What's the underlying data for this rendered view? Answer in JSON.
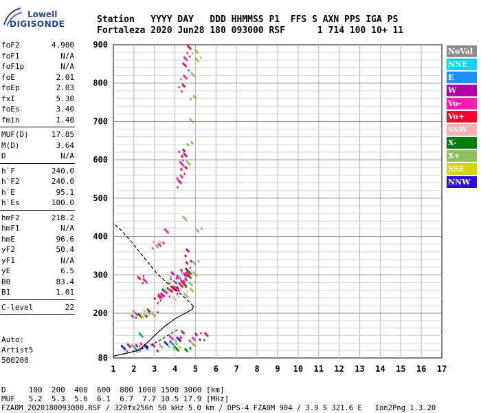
{
  "logo": {
    "line1": "Lowell",
    "line2": "DIGISONDE"
  },
  "header": {
    "line1": "Station   YYYY DAY   DDD HHMMSS P1  FFS S AXN PPS IGA PS",
    "line2": "Fortaleza 2020 Jun28 180 093000 RSF      1 714 100 10+ 11"
  },
  "params_groups": [
    [
      {
        "k": "foF2",
        "v": "4.900"
      },
      {
        "k": "foF1",
        "v": "N/A"
      },
      {
        "k": "foF1p",
        "v": "N/A"
      },
      {
        "k": "foE",
        "v": "2.01"
      },
      {
        "k": "foEp",
        "v": "2.03"
      },
      {
        "k": "fxI",
        "v": "5.30"
      },
      {
        "k": "foEs",
        "v": "3.40"
      },
      {
        "k": "fmin",
        "v": "1.40"
      }
    ],
    [
      {
        "k": "MUF(D)",
        "v": "17.85"
      },
      {
        "k": "M(D)",
        "v": "3.64"
      },
      {
        "k": "D",
        "v": "N/A"
      }
    ],
    [
      {
        "k": "h`F",
        "v": "240.0"
      },
      {
        "k": "h`F2",
        "v": "240.0"
      },
      {
        "k": "h`E",
        "v": "95.1"
      },
      {
        "k": "h`Es",
        "v": "100.0"
      }
    ],
    [
      {
        "k": "hmF2",
        "v": "218.2"
      },
      {
        "k": "hmF1",
        "v": "N/A"
      },
      {
        "k": "hmE",
        "v": "96.6"
      },
      {
        "k": "yF2",
        "v": "50.4"
      },
      {
        "k": "yF1",
        "v": "N/A"
      },
      {
        "k": "yE",
        "v": "6.5"
      },
      {
        "k": "B0",
        "v": "83.4"
      },
      {
        "k": "B1",
        "v": "1.01"
      }
    ],
    [
      {
        "k": "C-level",
        "v": "22"
      }
    ]
  ],
  "auto": {
    "line1": "Auto:",
    "line2": "Artist5",
    "line3": "500200"
  },
  "legend": [
    {
      "label": "NoVal",
      "color": "#8c8c8c"
    },
    {
      "label": "NNE",
      "color": "#00d8f0"
    },
    {
      "label": "E",
      "color": "#1f8fff"
    },
    {
      "label": "W",
      "color": "#b000a8"
    },
    {
      "label": "Vo-",
      "color": "#ff1ab0"
    },
    {
      "label": "Vo+",
      "color": "#ff0030"
    },
    {
      "label": "SSW",
      "color": "#f7b0b0"
    },
    {
      "label": "X-",
      "color": "#007c00"
    },
    {
      "label": "X+",
      "color": "#8cc060"
    },
    {
      "label": "SSE",
      "color": "#d6d600"
    },
    {
      "label": "NNW",
      "color": "#2a10e0"
    }
  ],
  "footer": {
    "d_row": "D     100  200  400  600  800 1000 1500 3000 [km]",
    "muf_row": "MUF   5.2  5.3  5.6  6.1  6.7  7.7 10.5 17.9 [MHz]",
    "file_row": "FZA0M_2020180093000.RSF / 320fx256h 50 kHz 5.0 km / DPS-4 FZA0M 904 / 3.9 S 321.6 E   Ion2Png 1.3.20"
  },
  "chart_data": {
    "type": "scatter",
    "xlim": [
      1,
      17
    ],
    "ylim": [
      80,
      900
    ],
    "x_ticks": [
      1,
      2,
      3,
      4,
      5,
      6,
      7,
      8,
      9,
      10,
      11,
      12,
      13,
      14,
      15,
      16,
      17
    ],
    "y_ticks": [
      80,
      200,
      300,
      400,
      500,
      600,
      700,
      800,
      900
    ],
    "grid": true,
    "legend_position": "right",
    "series": [
      {
        "name": "X+",
        "color": "#8cc060",
        "points": [
          [
            4.55,
            245
          ],
          [
            4.7,
            258
          ],
          [
            4.8,
            275
          ],
          [
            4.9,
            300
          ],
          [
            5.0,
            330
          ],
          [
            4.6,
            590
          ],
          [
            4.7,
            640
          ],
          [
            4.8,
            700
          ],
          [
            4.85,
            760
          ],
          [
            4.9,
            820
          ],
          [
            4.95,
            880
          ],
          [
            5.1,
            860
          ],
          [
            4.4,
            445
          ],
          [
            5.15,
            415
          ],
          [
            2.0,
            200
          ],
          [
            2.6,
            195
          ],
          [
            3.3,
            110
          ],
          [
            3.8,
            112
          ],
          [
            4.9,
            115
          ]
        ]
      },
      {
        "name": "X-",
        "color": "#007c00",
        "points": [
          [
            3.5,
            268
          ],
          [
            3.9,
            272
          ],
          [
            4.2,
            276
          ],
          [
            4.45,
            282
          ],
          [
            4.6,
            300
          ],
          [
            4.7,
            315
          ],
          [
            2.2,
            200
          ],
          [
            3.0,
            205
          ],
          [
            4.0,
            112
          ],
          [
            4.6,
            110
          ]
        ]
      },
      {
        "name": "Vo+",
        "color": "#ff0030",
        "points": [
          [
            3.1,
            238
          ],
          [
            3.4,
            245
          ],
          [
            3.7,
            255
          ],
          [
            3.95,
            262
          ],
          [
            4.2,
            270
          ],
          [
            4.4,
            280
          ],
          [
            4.55,
            300
          ],
          [
            4.65,
            330
          ],
          [
            4.2,
            540
          ],
          [
            4.4,
            575
          ],
          [
            4.5,
            610
          ],
          [
            4.3,
            790
          ],
          [
            4.5,
            845
          ],
          [
            4.6,
            890
          ],
          [
            2.3,
            290
          ],
          [
            1.7,
            110
          ],
          [
            2.2,
            112
          ],
          [
            5.5,
            140
          ]
        ]
      },
      {
        "name": "Vo-",
        "color": "#ff1ab0",
        "points": [
          [
            3.2,
            250
          ],
          [
            3.6,
            262
          ],
          [
            4.0,
            270
          ],
          [
            4.3,
            285
          ],
          [
            4.5,
            305
          ],
          [
            4.2,
            560
          ],
          [
            4.35,
            595
          ],
          [
            4.4,
            820
          ],
          [
            4.55,
            870
          ],
          [
            3.5,
            420
          ],
          [
            3.3,
            385
          ],
          [
            2.5,
            290
          ],
          [
            2.0,
            200
          ],
          [
            3.8,
            140
          ],
          [
            4.8,
            135
          ]
        ]
      },
      {
        "name": "W",
        "color": "#b000a8",
        "points": [
          [
            4.1,
            290
          ],
          [
            4.4,
            310
          ],
          [
            4.6,
            360
          ],
          [
            4.3,
            620
          ],
          [
            3.9,
            300
          ],
          [
            2.6,
            203
          ],
          [
            3.0,
            110
          ],
          [
            4.3,
            145
          ],
          [
            5.1,
            140
          ]
        ]
      },
      {
        "name": "E",
        "color": "#1f8fff",
        "points": [
          [
            2.1,
            110
          ],
          [
            2.5,
            112
          ],
          [
            3.9,
            125
          ],
          [
            2.3,
            145
          ]
        ]
      },
      {
        "name": "NNE",
        "color": "#00d8f0",
        "points": [
          [
            2.0,
            108
          ],
          [
            4.0,
            115
          ]
        ]
      },
      {
        "name": "SSW",
        "color": "#f7b0b0",
        "points": [
          [
            3.2,
            385
          ],
          [
            4.0,
            240
          ],
          [
            2.9,
            200
          ]
        ]
      },
      {
        "name": "SSE",
        "color": "#d6d600",
        "points": [
          [
            2.4,
            200
          ],
          [
            4.1,
            117
          ]
        ]
      },
      {
        "name": "NNW",
        "color": "#2a10e0",
        "points": [
          [
            1.5,
            108
          ],
          [
            2.5,
            110
          ],
          [
            3.6,
            120
          ],
          [
            4.1,
            130
          ]
        ]
      },
      {
        "name": "NoVal",
        "color": "#8c8c8c",
        "points": [
          [
            3.8,
            288
          ],
          [
            4.2,
            300
          ],
          [
            3.0,
            380
          ]
        ]
      }
    ],
    "profile": {
      "solid": [
        [
          1.0,
          85
        ],
        [
          1.6,
          92
        ],
        [
          2.2,
          100
        ],
        [
          2.6,
          118
        ],
        [
          3.0,
          140
        ],
        [
          3.5,
          165
        ],
        [
          4.0,
          185
        ],
        [
          4.5,
          200
        ],
        [
          4.85,
          210
        ],
        [
          4.9,
          218
        ]
      ],
      "dashed": [
        [
          4.9,
          218
        ],
        [
          4.5,
          240
        ],
        [
          3.8,
          270
        ],
        [
          3.1,
          305
        ],
        [
          2.5,
          345
        ],
        [
          1.9,
          385
        ],
        [
          1.4,
          415
        ],
        [
          1.0,
          435
        ]
      ],
      "dashed_low": [
        [
          1.0,
          85
        ],
        [
          1.8,
          95
        ],
        [
          2.6,
          108
        ],
        [
          3.2,
          125
        ],
        [
          3.7,
          142
        ],
        [
          4.2,
          158
        ]
      ]
    }
  }
}
